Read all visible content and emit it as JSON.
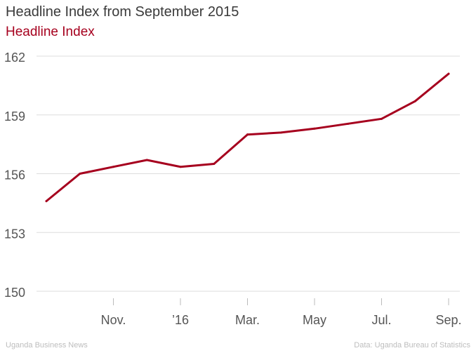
{
  "header": {
    "title": "Headline Index from September 2015"
  },
  "footer": {
    "source_left": "Uganda Business News",
    "source_right": "Data: Uganda Bureau of Statistics"
  },
  "chart_data": {
    "type": "line",
    "title": "Headline Index from September 2015",
    "xlabel": "",
    "ylabel": "",
    "ylim": [
      150,
      162
    ],
    "y_ticks": [
      150,
      153,
      156,
      159,
      162
    ],
    "x": [
      "2015-09",
      "2015-10",
      "2015-11",
      "2015-12",
      "2016-01",
      "2016-02",
      "2016-03",
      "2016-04",
      "2016-05",
      "2016-06",
      "2016-07",
      "2016-08",
      "2016-09"
    ],
    "x_tick_labels": [
      {
        "x": "2015-11",
        "label": "Nov."
      },
      {
        "x": "2016-01",
        "label": "’16"
      },
      {
        "x": "2016-03",
        "label": "Mar."
      },
      {
        "x": "2016-05",
        "label": "May"
      },
      {
        "x": "2016-07",
        "label": "Jul."
      },
      {
        "x": "2016-09",
        "label": "Sep."
      }
    ],
    "series": [
      {
        "name": "Headline Index",
        "color": "#a6001e",
        "values": [
          154.6,
          156.0,
          156.35,
          156.7,
          156.35,
          156.5,
          158.0,
          158.1,
          158.3,
          158.55,
          158.8,
          159.7,
          161.1
        ]
      }
    ],
    "grid": true,
    "legend": "top-left"
  }
}
